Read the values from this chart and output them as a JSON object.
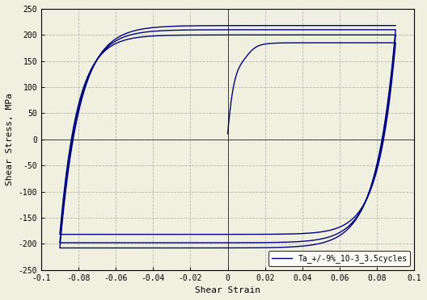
{
  "title": "",
  "xlabel": "Shear Strain",
  "ylabel": "Shear Stress, MPa",
  "xlim": [
    -0.1,
    0.1
  ],
  "ylim": [
    -250,
    250
  ],
  "xticks": [
    -0.1,
    -0.08,
    -0.06,
    -0.04,
    -0.02,
    0,
    0.02,
    0.04,
    0.06,
    0.08,
    0.1
  ],
  "yticks": [
    -250,
    -200,
    -150,
    -100,
    -50,
    0,
    50,
    100,
    150,
    200,
    250
  ],
  "line_color": "#000080",
  "line_width": 1.0,
  "legend_label": "Ta_+/-9%_10-3_3.5cycles",
  "background_color": "#f0f0e0",
  "grid_color": "#b0b0b0",
  "n_cycles": 3.5
}
